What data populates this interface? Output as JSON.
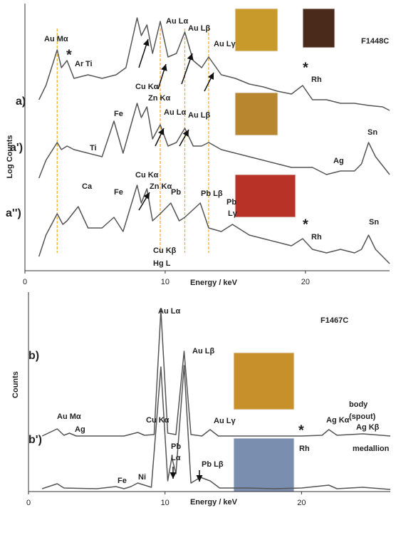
{
  "chart_data": [
    {
      "type": "line",
      "title": "F1448C",
      "x_label": "Energy / keV",
      "y_label": "Log Counts",
      "xlim": [
        0,
        26
      ],
      "xticks": [
        0,
        10,
        20
      ],
      "ylim": [
        0,
        37.5
      ],
      "reference_lines": [
        2.3,
        9.65,
        11.4,
        13.1
      ],
      "reference_color": "#f2b134",
      "series": [
        {
          "name": "a)",
          "color": "#555555",
          "x": [
            1.0,
            1.5,
            2.3,
            2.6,
            3.0,
            3.5,
            4.5,
            5.5,
            6.5,
            7.2,
            8.0,
            8.3,
            8.7,
            9.1,
            9.65,
            10.2,
            10.8,
            11.4,
            12.0,
            12.6,
            13.1,
            14,
            15,
            16,
            17,
            18,
            19,
            19.8,
            20.5,
            21.5,
            22.5,
            23.5,
            24.5,
            25.5,
            26
          ],
          "values": [
            24,
            26,
            31,
            28.5,
            29.5,
            27,
            27.5,
            27,
            27.5,
            28.5,
            35.5,
            33,
            34.5,
            30.5,
            35,
            30,
            30.5,
            33.5,
            29.5,
            28.5,
            30,
            27.5,
            27,
            26.2,
            25.8,
            25.2,
            24.8,
            26,
            24,
            24,
            23.5,
            23.5,
            23.2,
            23,
            22.5
          ]
        },
        {
          "name": "a')",
          "color": "#555555",
          "x": [
            1.0,
            1.5,
            2.3,
            2.6,
            3.0,
            3.5,
            4.5,
            5.5,
            6.35,
            7.0,
            8.0,
            8.3,
            8.7,
            9.1,
            9.65,
            10.2,
            10.8,
            11.4,
            12.0,
            12.6,
            13.1,
            14,
            15,
            16,
            17,
            18,
            19,
            19.8,
            20.5,
            21.5,
            22.5,
            23.5,
            24.0,
            24.5,
            25.0,
            25.8,
            26
          ],
          "values": [
            13,
            15.5,
            18,
            17,
            17.5,
            17,
            16.5,
            16,
            21,
            16.5,
            23.5,
            21.5,
            23,
            18.5,
            20.5,
            17.5,
            18,
            20,
            17.5,
            17.5,
            18,
            17,
            16.5,
            16,
            15.5,
            15,
            14.5,
            14.5,
            14.5,
            13.5,
            14,
            14,
            15,
            18,
            16,
            14,
            13.5
          ]
        },
        {
          "name": "a'')",
          "color": "#555555",
          "x": [
            1.0,
            1.5,
            2.3,
            2.7,
            3.0,
            3.8,
            4.5,
            5.5,
            6.35,
            7.0,
            8.0,
            8.3,
            8.7,
            9.1,
            9.65,
            10.4,
            11.0,
            11.4,
            12.5,
            13.1,
            14,
            14.8,
            16,
            17,
            18,
            19,
            19.8,
            20.5,
            21.5,
            22.5,
            23.5,
            24.0,
            24.5,
            25.0,
            26
          ],
          "values": [
            2,
            5,
            8,
            6.5,
            7,
            9,
            6,
            6,
            7.5,
            5.5,
            12,
            9.5,
            11.5,
            7,
            8,
            9.5,
            7,
            7.5,
            9.5,
            6,
            5.5,
            6.5,
            5,
            4.5,
            4,
            3.5,
            4.5,
            3,
            2.5,
            3,
            2.5,
            3,
            5,
            3,
            1
          ]
        }
      ],
      "annotations": [
        {
          "text": "Au Mα"
        },
        {
          "text": "*",
          "color": "#e02020"
        },
        {
          "text": "Ar",
          "color": "#e02020"
        },
        {
          "text": "Ti"
        },
        {
          "text": "Au Lα"
        },
        {
          "text": "Au Lβ"
        },
        {
          "text": "Au Lγ"
        },
        {
          "text": "Cu Kα"
        },
        {
          "text": "Zn Kα"
        },
        {
          "text": "*",
          "color": "#e02020"
        },
        {
          "text": "Rh",
          "color": "#e02020"
        },
        {
          "text": "Fe"
        },
        {
          "text": "Ti"
        },
        {
          "text": "Au Lα"
        },
        {
          "text": "Au Lβ"
        },
        {
          "text": "Sn"
        },
        {
          "text": "Ag"
        },
        {
          "text": "Ca"
        },
        {
          "text": "Fe"
        },
        {
          "text": "Cu Kα"
        },
        {
          "text": "Zn Kα"
        },
        {
          "text": "Pb",
          "color": "#d9a01a"
        },
        {
          "text": "Pb Lβ"
        },
        {
          "text": "Pb"
        },
        {
          "text": "Lγ"
        },
        {
          "text": "Cu Kβ"
        },
        {
          "text": "Hg L"
        },
        {
          "text": "*",
          "color": "#e02020"
        },
        {
          "text": "Rh",
          "color": "#e02020"
        },
        {
          "text": "Sn",
          "color": "#d9a01a"
        }
      ]
    },
    {
      "type": "line",
      "title": "F1467C",
      "x_label": "Energy / keV",
      "y_label": "Counts",
      "xlim": [
        0,
        26.5
      ],
      "xticks": [
        0,
        10,
        20
      ],
      "ylim": [
        0,
        28
      ],
      "series": [
        {
          "name": "b)",
          "color": "#555555",
          "x": [
            1.0,
            2.1,
            2.6,
            3.0,
            3.5,
            5,
            7,
            8.0,
            8.5,
            9.2,
            9.7,
            10.2,
            10.8,
            11.4,
            11.9,
            12.7,
            13.3,
            13.9,
            16,
            20,
            21.5,
            22.0,
            22.6,
            24.5,
            26.5
          ],
          "values": [
            7.8,
            8.8,
            7.9,
            8.2,
            7.8,
            7.8,
            7.8,
            8.3,
            7.9,
            8.0,
            25.5,
            8.2,
            8.0,
            19.7,
            8.0,
            7.8,
            8.7,
            7.8,
            7.8,
            7.8,
            7.9,
            8.7,
            7.9,
            8.1,
            7.8
          ]
        },
        {
          "name": "b')",
          "color": "#555555",
          "x": [
            1.0,
            2.1,
            2.6,
            5,
            6.4,
            7.0,
            7.5,
            8.0,
            9.0,
            9.7,
            10.2,
            10.5,
            10.8,
            11.4,
            11.9,
            12.6,
            13.3,
            14,
            16,
            18,
            20,
            22.0,
            22.6,
            24.5,
            26.5
          ],
          "values": [
            0.4,
            1.1,
            0.5,
            0.4,
            0.7,
            0.4,
            0.7,
            1.2,
            0.6,
            17.5,
            1.5,
            4.8,
            2.5,
            17.7,
            1.2,
            2.0,
            1.5,
            0.5,
            0.5,
            0.4,
            0.5,
            0.9,
            0.4,
            0.6,
            0.3
          ]
        }
      ],
      "annotations": [
        {
          "text": "Au Lα"
        },
        {
          "text": "Au Lβ"
        },
        {
          "text": "Au Mα"
        },
        {
          "text": "Ag"
        },
        {
          "text": "Cu Kα"
        },
        {
          "text": "Au Lγ"
        },
        {
          "text": "*",
          "color": "#e02020"
        },
        {
          "text": "Rh",
          "color": "#e02020"
        },
        {
          "text": "Ag Kα"
        },
        {
          "text": "Ag Kβ"
        },
        {
          "text": "body"
        },
        {
          "text": "(spout)"
        },
        {
          "text": "Pb"
        },
        {
          "text": "Lα"
        },
        {
          "text": "Pb Lβ"
        },
        {
          "text": "Fe"
        },
        {
          "text": "Ni"
        },
        {
          "text": "medallion"
        }
      ]
    }
  ]
}
